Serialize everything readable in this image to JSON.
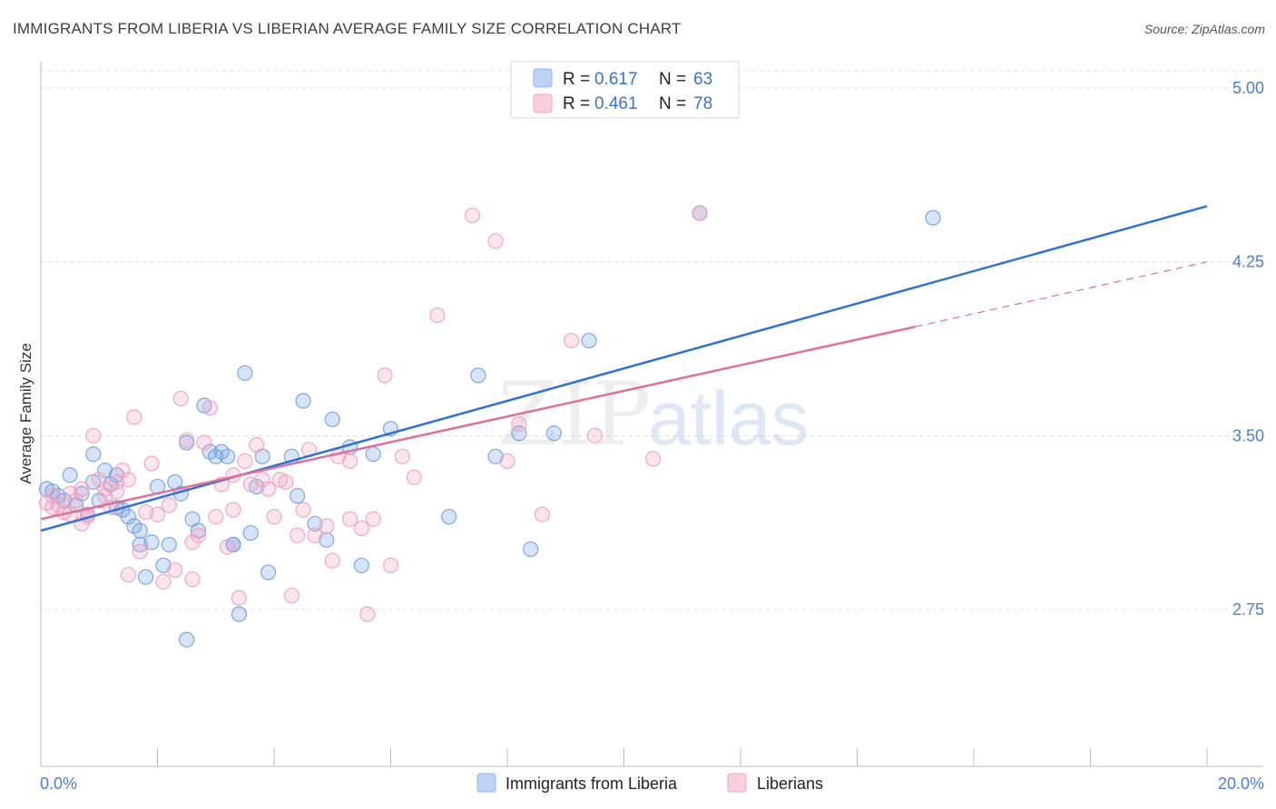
{
  "title": "IMMIGRANTS FROM LIBERIA VS LIBERIAN AVERAGE FAMILY SIZE CORRELATION CHART",
  "source": "Source: ZipAtlas.com",
  "watermark": {
    "zip": "ZIP",
    "atlas": "atlas"
  },
  "legend_top": [
    {
      "r_label": "R =",
      "r_value": "0.617",
      "n_label": "N =",
      "n_value": "63",
      "color": "#8fb4ec"
    },
    {
      "r_label": "R =",
      "r_value": "0.461",
      "n_label": "N =",
      "n_value": "78",
      "color": "#f2a3bf"
    }
  ],
  "chart_data": {
    "type": "scatter",
    "title": "IMMIGRANTS FROM LIBERIA VS LIBERIAN AVERAGE FAMILY SIZE CORRELATION CHART",
    "ylabel": "Average Family Size",
    "xlabel": "",
    "xlim": [
      0,
      20
    ],
    "ylim": [
      2.0,
      5.1
    ],
    "x_tick_labels": [
      "0.0%",
      "20.0%"
    ],
    "y_ticks": [
      2.75,
      3.5,
      4.25,
      5.0
    ],
    "y_tick_labels": [
      "2.75",
      "3.50",
      "4.25",
      "5.00"
    ],
    "grid": "horizontal dashed",
    "legend_position": "top-center and bottom",
    "series": [
      {
        "name": "Immigrants from Liberia",
        "color": "#6f9fe3",
        "line_color": "#2f72d2",
        "trend": {
          "x0": 0.0,
          "y0": 3.09,
          "x1": 20.0,
          "y1": 4.49
        },
        "points": [
          [
            0.1,
            3.27
          ],
          [
            0.2,
            3.26
          ],
          [
            0.3,
            3.24
          ],
          [
            0.4,
            3.22
          ],
          [
            0.5,
            3.33
          ],
          [
            0.6,
            3.2
          ],
          [
            0.7,
            3.25
          ],
          [
            0.8,
            3.16
          ],
          [
            0.9,
            3.3
          ],
          [
            0.9,
            3.42
          ],
          [
            1.0,
            3.22
          ],
          [
            1.1,
            3.35
          ],
          [
            1.2,
            3.29
          ],
          [
            1.3,
            3.33
          ],
          [
            1.3,
            3.19
          ],
          [
            1.4,
            3.18
          ],
          [
            1.5,
            3.15
          ],
          [
            1.6,
            3.11
          ],
          [
            1.7,
            3.09
          ],
          [
            1.7,
            3.03
          ],
          [
            1.8,
            2.89
          ],
          [
            1.9,
            3.04
          ],
          [
            2.0,
            3.28
          ],
          [
            2.1,
            2.94
          ],
          [
            2.2,
            3.03
          ],
          [
            2.3,
            3.3
          ],
          [
            2.4,
            3.25
          ],
          [
            2.5,
            3.47
          ],
          [
            2.6,
            3.14
          ],
          [
            2.7,
            3.09
          ],
          [
            2.8,
            3.63
          ],
          [
            2.9,
            3.43
          ],
          [
            2.5,
            2.62
          ],
          [
            3.0,
            3.41
          ],
          [
            3.1,
            3.43
          ],
          [
            3.2,
            3.41
          ],
          [
            3.3,
            3.03
          ],
          [
            3.4,
            2.73
          ],
          [
            3.5,
            3.77
          ],
          [
            3.6,
            3.08
          ],
          [
            3.7,
            3.28
          ],
          [
            3.8,
            3.41
          ],
          [
            3.9,
            2.91
          ],
          [
            4.3,
            3.41
          ],
          [
            4.4,
            3.24
          ],
          [
            4.5,
            3.65
          ],
          [
            4.7,
            3.12
          ],
          [
            4.9,
            3.05
          ],
          [
            5.0,
            3.57
          ],
          [
            5.3,
            3.45
          ],
          [
            5.5,
            2.94
          ],
          [
            5.7,
            3.42
          ],
          [
            6.0,
            3.53
          ],
          [
            7.0,
            3.15
          ],
          [
            7.5,
            3.76
          ],
          [
            7.8,
            3.41
          ],
          [
            8.2,
            3.51
          ],
          [
            8.4,
            3.01
          ],
          [
            8.8,
            3.51
          ],
          [
            9.4,
            3.91
          ],
          [
            11.3,
            4.46
          ],
          [
            15.3,
            4.44
          ],
          [
            3.3,
            3.03
          ]
        ]
      },
      {
        "name": "Liberians",
        "color": "#f0a0bd",
        "line_color": "#e0709a",
        "trend": {
          "x0": 0.0,
          "y0": 3.14,
          "x1": 15.0,
          "y1": 3.97
        },
        "trend_dashed": {
          "x0": 15.0,
          "y0": 3.97,
          "x1": 20.0,
          "y1": 4.25
        },
        "points": [
          [
            0.1,
            3.21
          ],
          [
            0.2,
            3.24
          ],
          [
            0.3,
            3.2
          ],
          [
            0.4,
            3.17
          ],
          [
            0.5,
            3.25
          ],
          [
            0.6,
            3.22
          ],
          [
            0.7,
            3.27
          ],
          [
            0.7,
            3.12
          ],
          [
            0.8,
            3.16
          ],
          [
            0.9,
            3.5
          ],
          [
            1.0,
            3.31
          ],
          [
            1.1,
            3.24
          ],
          [
            1.1,
            3.27
          ],
          [
            1.2,
            3.19
          ],
          [
            1.3,
            3.26
          ],
          [
            1.4,
            3.35
          ],
          [
            1.5,
            3.31
          ],
          [
            1.5,
            2.9
          ],
          [
            1.6,
            3.58
          ],
          [
            1.7,
            3.0
          ],
          [
            1.8,
            3.17
          ],
          [
            1.9,
            3.38
          ],
          [
            2.0,
            3.16
          ],
          [
            2.1,
            2.87
          ],
          [
            2.2,
            3.2
          ],
          [
            2.3,
            2.92
          ],
          [
            2.4,
            3.66
          ],
          [
            2.5,
            3.48
          ],
          [
            2.6,
            2.88
          ],
          [
            2.7,
            3.07
          ],
          [
            2.8,
            3.47
          ],
          [
            2.9,
            3.62
          ],
          [
            3.0,
            3.15
          ],
          [
            3.1,
            3.29
          ],
          [
            3.2,
            3.02
          ],
          [
            3.3,
            3.18
          ],
          [
            3.4,
            2.8
          ],
          [
            3.5,
            3.39
          ],
          [
            3.6,
            3.29
          ],
          [
            3.7,
            3.46
          ],
          [
            3.8,
            3.31
          ],
          [
            3.9,
            3.27
          ],
          [
            4.0,
            3.15
          ],
          [
            4.1,
            3.31
          ],
          [
            4.2,
            3.3
          ],
          [
            4.3,
            2.81
          ],
          [
            4.4,
            3.07
          ],
          [
            4.5,
            3.18
          ],
          [
            4.6,
            3.44
          ],
          [
            4.7,
            3.07
          ],
          [
            4.9,
            3.11
          ],
          [
            5.0,
            2.96
          ],
          [
            5.1,
            3.41
          ],
          [
            5.3,
            3.39
          ],
          [
            5.5,
            3.1
          ],
          [
            5.6,
            2.73
          ],
          [
            5.7,
            3.14
          ],
          [
            5.9,
            3.76
          ],
          [
            6.0,
            2.94
          ],
          [
            6.2,
            3.41
          ],
          [
            6.4,
            3.32
          ],
          [
            6.8,
            4.02
          ],
          [
            7.4,
            4.45
          ],
          [
            7.8,
            4.34
          ],
          [
            8.0,
            3.39
          ],
          [
            8.2,
            3.55
          ],
          [
            8.6,
            3.16
          ],
          [
            9.1,
            3.91
          ],
          [
            9.5,
            3.5
          ],
          [
            10.5,
            3.4
          ],
          [
            11.3,
            4.46
          ],
          [
            0.2,
            3.19
          ],
          [
            0.5,
            3.16
          ],
          [
            1.3,
            3.3
          ],
          [
            2.6,
            3.04
          ],
          [
            3.3,
            3.33
          ],
          [
            5.3,
            3.14
          ],
          [
            0.8,
            3.15
          ]
        ]
      }
    ]
  },
  "legend_bottom": [
    {
      "label": "Immigrants from Liberia",
      "color": "#8fb4ec"
    },
    {
      "label": "Liberians",
      "color": "#f2a3bf"
    }
  ]
}
